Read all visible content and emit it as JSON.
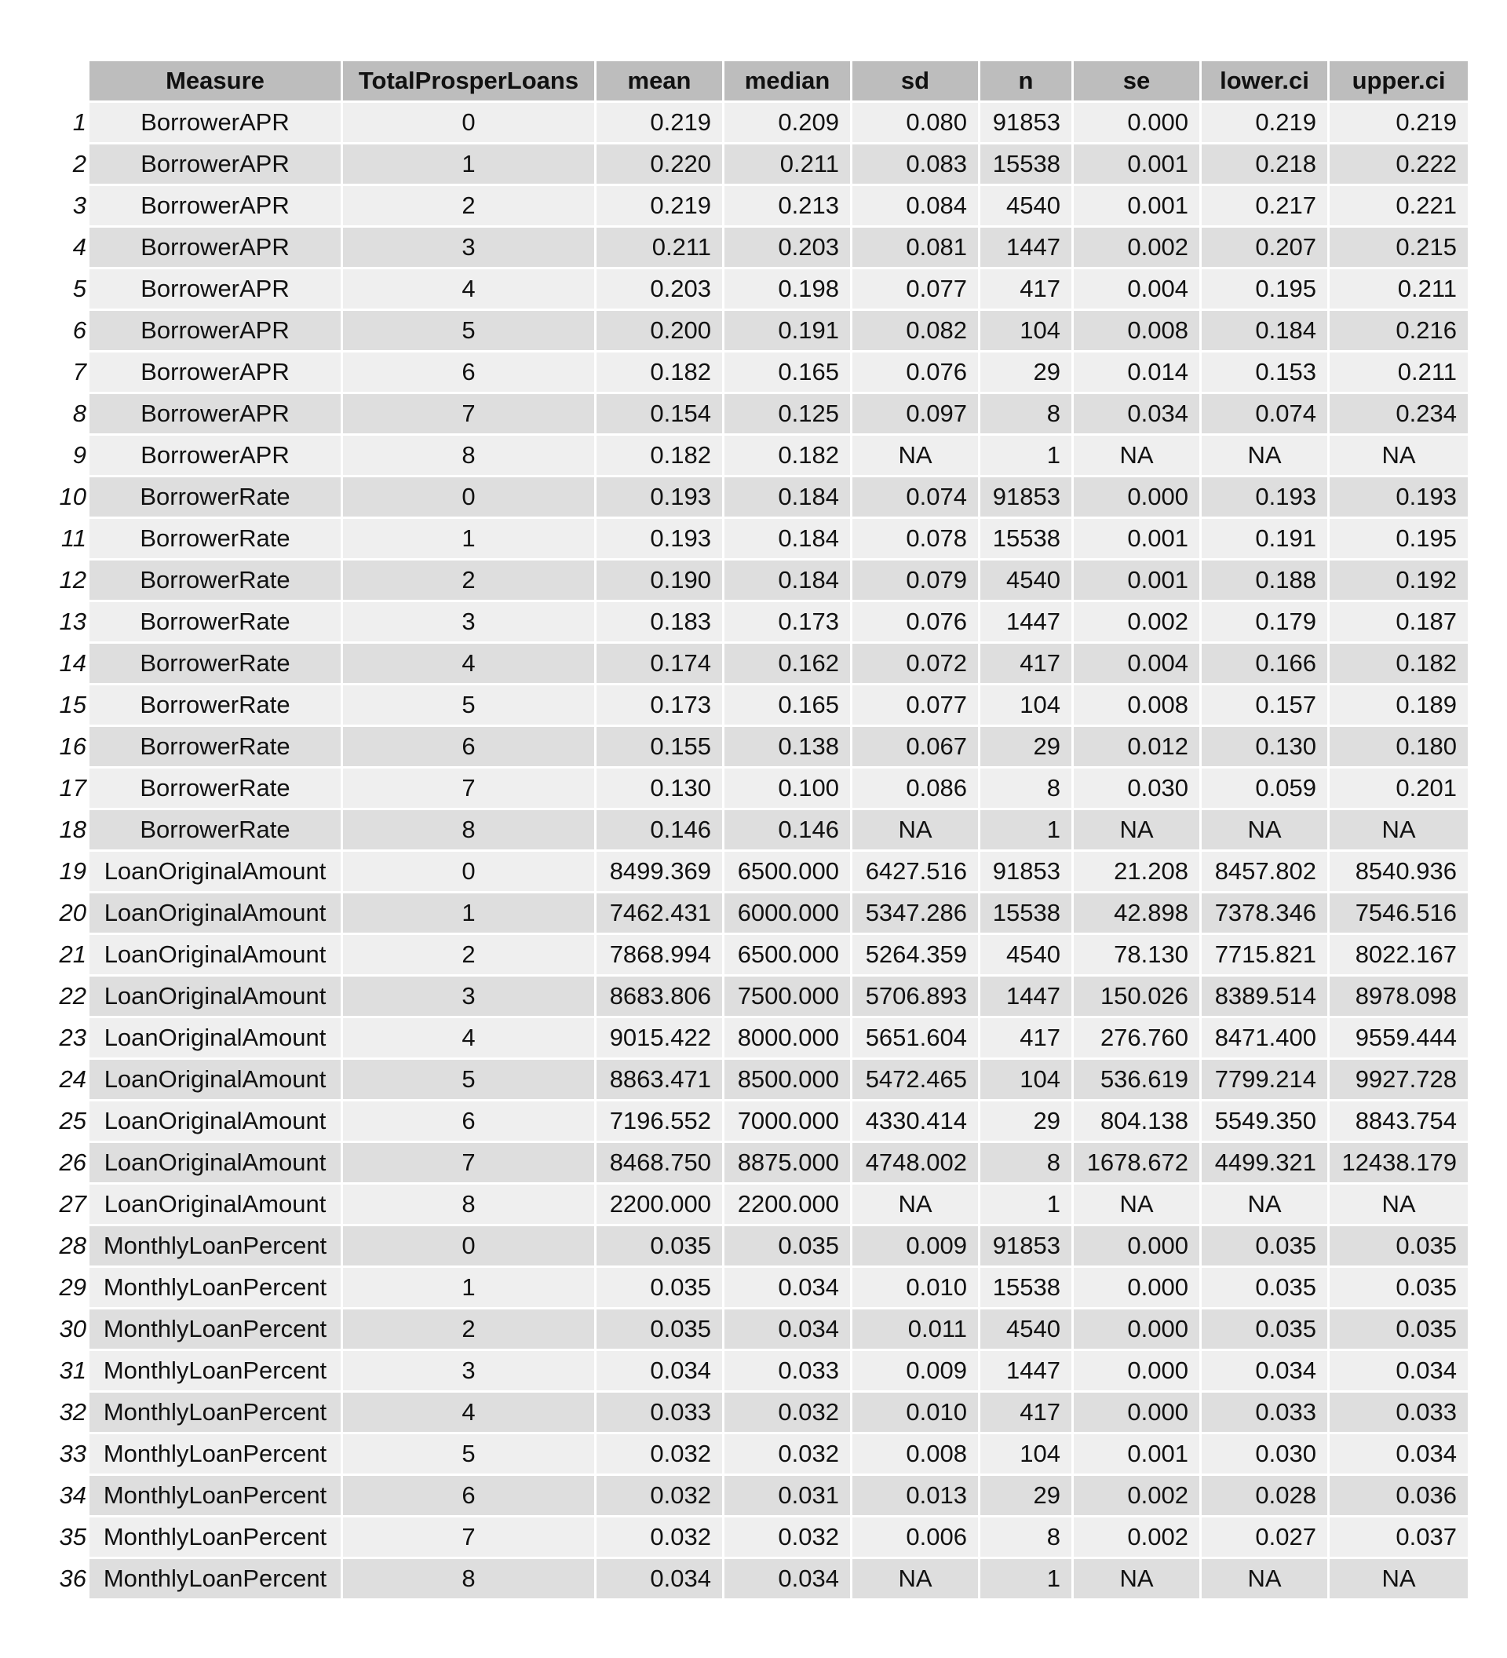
{
  "chart_data": {
    "type": "table",
    "columns": [
      "Measure",
      "TotalProsperLoans",
      "mean",
      "median",
      "sd",
      "n",
      "se",
      "lower.ci",
      "upper.ci"
    ],
    "rows": [
      [
        "1",
        "BorrowerAPR",
        "0",
        "0.219",
        "0.209",
        "0.080",
        "91853",
        "0.000",
        "0.219",
        "0.219"
      ],
      [
        "2",
        "BorrowerAPR",
        "1",
        "0.220",
        "0.211",
        "0.083",
        "15538",
        "0.001",
        "0.218",
        "0.222"
      ],
      [
        "3",
        "BorrowerAPR",
        "2",
        "0.219",
        "0.213",
        "0.084",
        "4540",
        "0.001",
        "0.217",
        "0.221"
      ],
      [
        "4",
        "BorrowerAPR",
        "3",
        "0.211",
        "0.203",
        "0.081",
        "1447",
        "0.002",
        "0.207",
        "0.215"
      ],
      [
        "5",
        "BorrowerAPR",
        "4",
        "0.203",
        "0.198",
        "0.077",
        "417",
        "0.004",
        "0.195",
        "0.211"
      ],
      [
        "6",
        "BorrowerAPR",
        "5",
        "0.200",
        "0.191",
        "0.082",
        "104",
        "0.008",
        "0.184",
        "0.216"
      ],
      [
        "7",
        "BorrowerAPR",
        "6",
        "0.182",
        "0.165",
        "0.076",
        "29",
        "0.014",
        "0.153",
        "0.211"
      ],
      [
        "8",
        "BorrowerAPR",
        "7",
        "0.154",
        "0.125",
        "0.097",
        "8",
        "0.034",
        "0.074",
        "0.234"
      ],
      [
        "9",
        "BorrowerAPR",
        "8",
        "0.182",
        "0.182",
        "NA",
        "1",
        "NA",
        "NA",
        "NA"
      ],
      [
        "10",
        "BorrowerRate",
        "0",
        "0.193",
        "0.184",
        "0.074",
        "91853",
        "0.000",
        "0.193",
        "0.193"
      ],
      [
        "11",
        "BorrowerRate",
        "1",
        "0.193",
        "0.184",
        "0.078",
        "15538",
        "0.001",
        "0.191",
        "0.195"
      ],
      [
        "12",
        "BorrowerRate",
        "2",
        "0.190",
        "0.184",
        "0.079",
        "4540",
        "0.001",
        "0.188",
        "0.192"
      ],
      [
        "13",
        "BorrowerRate",
        "3",
        "0.183",
        "0.173",
        "0.076",
        "1447",
        "0.002",
        "0.179",
        "0.187"
      ],
      [
        "14",
        "BorrowerRate",
        "4",
        "0.174",
        "0.162",
        "0.072",
        "417",
        "0.004",
        "0.166",
        "0.182"
      ],
      [
        "15",
        "BorrowerRate",
        "5",
        "0.173",
        "0.165",
        "0.077",
        "104",
        "0.008",
        "0.157",
        "0.189"
      ],
      [
        "16",
        "BorrowerRate",
        "6",
        "0.155",
        "0.138",
        "0.067",
        "29",
        "0.012",
        "0.130",
        "0.180"
      ],
      [
        "17",
        "BorrowerRate",
        "7",
        "0.130",
        "0.100",
        "0.086",
        "8",
        "0.030",
        "0.059",
        "0.201"
      ],
      [
        "18",
        "BorrowerRate",
        "8",
        "0.146",
        "0.146",
        "NA",
        "1",
        "NA",
        "NA",
        "NA"
      ],
      [
        "19",
        "LoanOriginalAmount",
        "0",
        "8499.369",
        "6500.000",
        "6427.516",
        "91853",
        "21.208",
        "8457.802",
        "8540.936"
      ],
      [
        "20",
        "LoanOriginalAmount",
        "1",
        "7462.431",
        "6000.000",
        "5347.286",
        "15538",
        "42.898",
        "7378.346",
        "7546.516"
      ],
      [
        "21",
        "LoanOriginalAmount",
        "2",
        "7868.994",
        "6500.000",
        "5264.359",
        "4540",
        "78.130",
        "7715.821",
        "8022.167"
      ],
      [
        "22",
        "LoanOriginalAmount",
        "3",
        "8683.806",
        "7500.000",
        "5706.893",
        "1447",
        "150.026",
        "8389.514",
        "8978.098"
      ],
      [
        "23",
        "LoanOriginalAmount",
        "4",
        "9015.422",
        "8000.000",
        "5651.604",
        "417",
        "276.760",
        "8471.400",
        "9559.444"
      ],
      [
        "24",
        "LoanOriginalAmount",
        "5",
        "8863.471",
        "8500.000",
        "5472.465",
        "104",
        "536.619",
        "7799.214",
        "9927.728"
      ],
      [
        "25",
        "LoanOriginalAmount",
        "6",
        "7196.552",
        "7000.000",
        "4330.414",
        "29",
        "804.138",
        "5549.350",
        "8843.754"
      ],
      [
        "26",
        "LoanOriginalAmount",
        "7",
        "8468.750",
        "8875.000",
        "4748.002",
        "8",
        "1678.672",
        "4499.321",
        "12438.179"
      ],
      [
        "27",
        "LoanOriginalAmount",
        "8",
        "2200.000",
        "2200.000",
        "NA",
        "1",
        "NA",
        "NA",
        "NA"
      ],
      [
        "28",
        "MonthlyLoanPercent",
        "0",
        "0.035",
        "0.035",
        "0.009",
        "91853",
        "0.000",
        "0.035",
        "0.035"
      ],
      [
        "29",
        "MonthlyLoanPercent",
        "1",
        "0.035",
        "0.034",
        "0.010",
        "15538",
        "0.000",
        "0.035",
        "0.035"
      ],
      [
        "30",
        "MonthlyLoanPercent",
        "2",
        "0.035",
        "0.034",
        "0.011",
        "4540",
        "0.000",
        "0.035",
        "0.035"
      ],
      [
        "31",
        "MonthlyLoanPercent",
        "3",
        "0.034",
        "0.033",
        "0.009",
        "1447",
        "0.000",
        "0.034",
        "0.034"
      ],
      [
        "32",
        "MonthlyLoanPercent",
        "4",
        "0.033",
        "0.032",
        "0.010",
        "417",
        "0.000",
        "0.033",
        "0.033"
      ],
      [
        "33",
        "MonthlyLoanPercent",
        "5",
        "0.032",
        "0.032",
        "0.008",
        "104",
        "0.001",
        "0.030",
        "0.034"
      ],
      [
        "34",
        "MonthlyLoanPercent",
        "6",
        "0.032",
        "0.031",
        "0.013",
        "29",
        "0.002",
        "0.028",
        "0.036"
      ],
      [
        "35",
        "MonthlyLoanPercent",
        "7",
        "0.032",
        "0.032",
        "0.006",
        "8",
        "0.002",
        "0.027",
        "0.037"
      ],
      [
        "36",
        "MonthlyLoanPercent",
        "8",
        "0.034",
        "0.034",
        "NA",
        "1",
        "NA",
        "NA",
        "NA"
      ]
    ],
    "colors": {
      "header_fill": "#bdbdbd",
      "row_fill_light": "#efefef",
      "row_fill_dark": "#dedede",
      "background": "#ffffff"
    }
  }
}
